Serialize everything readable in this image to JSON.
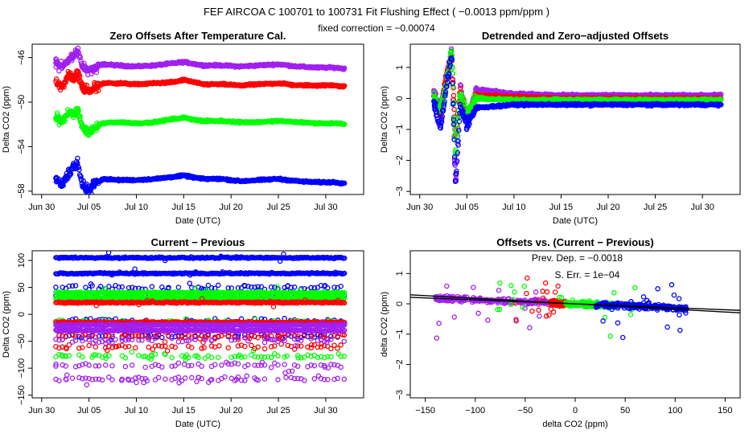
{
  "figure": {
    "title": "FEF    AIRCOA C    100701 to 100731    Fit Flushing Effect ( −0.0013 ppm/ppm )",
    "subtitle": "fixed correction = −0.00074"
  },
  "colors": {
    "purple": "#a020f0",
    "red": "#ff0000",
    "green": "#00ff00",
    "blue": "#0000ff",
    "black": "#000000"
  },
  "chart_data": [
    {
      "id": "panel1",
      "type": "scatter",
      "title": "Zero Offsets After Temperature Cal.",
      "xlabel": "Date (UTC)",
      "ylabel": "Delta CO2 (ppm)",
      "x_unit": "day of July 2010 (0 = Jun 30)",
      "xlim": [
        -1,
        34
      ],
      "ylim": [
        -58.3,
        -44.8
      ],
      "x_ticks": [
        {
          "v": 0,
          "label": "Jun 30"
        },
        {
          "v": 5,
          "label": "Jul 05"
        },
        {
          "v": 10,
          "label": "Jul 10"
        },
        {
          "v": 15,
          "label": "Jul 15"
        },
        {
          "v": 20,
          "label": "Jul 20"
        },
        {
          "v": 25,
          "label": "Jul 25"
        },
        {
          "v": 30,
          "label": "Jul 30"
        }
      ],
      "y_ticks": [
        {
          "v": -46,
          "label": "−46"
        },
        {
          "v": -50,
          "label": "−50"
        },
        {
          "v": -54,
          "label": "−54"
        },
        {
          "v": -58,
          "label": "−58"
        }
      ],
      "series": [
        {
          "name": "purple",
          "color": "purple",
          "x": [
            1.5,
            2.2,
            2.8,
            3.4,
            3.8,
            4.3,
            5,
            5.6,
            6.5,
            8,
            10,
            12,
            14,
            15,
            17,
            19,
            21,
            23,
            25,
            27,
            29,
            31,
            32
          ],
          "y": [
            -46.5,
            -46.9,
            -46.2,
            -45.9,
            -45.3,
            -46.8,
            -47.1,
            -46.9,
            -46.6,
            -46.7,
            -46.8,
            -46.7,
            -46.5,
            -46.4,
            -46.7,
            -46.7,
            -46.8,
            -46.7,
            -46.6,
            -46.8,
            -46.9,
            -46.9,
            -47.0
          ]
        },
        {
          "name": "red",
          "color": "red",
          "x": [
            1.5,
            2.2,
            2.8,
            3.4,
            3.8,
            4.3,
            5,
            5.6,
            6.5,
            8,
            10,
            12,
            14,
            15,
            17,
            19,
            21,
            23,
            25,
            27,
            29,
            31,
            32
          ],
          "y": [
            -48.2,
            -48.6,
            -47.6,
            -47.9,
            -47.3,
            -48.7,
            -49.1,
            -48.7,
            -48.3,
            -48.3,
            -48.4,
            -48.3,
            -48.2,
            -48.0,
            -48.4,
            -48.4,
            -48.5,
            -48.4,
            -48.3,
            -48.5,
            -48.5,
            -48.5,
            -48.6
          ]
        },
        {
          "name": "green",
          "color": "green",
          "x": [
            1.5,
            2.2,
            2.8,
            3.4,
            3.8,
            4.3,
            5,
            5.6,
            6.5,
            8,
            10,
            12,
            14,
            15,
            17,
            19,
            21,
            23,
            25,
            27,
            29,
            31,
            32
          ],
          "y": [
            -51.3,
            -51.8,
            -50.9,
            -51.2,
            -50.6,
            -52.3,
            -52.8,
            -52.3,
            -51.9,
            -51.8,
            -51.9,
            -51.8,
            -51.5,
            -51.4,
            -51.7,
            -51.7,
            -51.8,
            -51.8,
            -51.7,
            -51.8,
            -51.9,
            -51.9,
            -52.0
          ]
        },
        {
          "name": "blue",
          "color": "blue",
          "x": [
            1.5,
            2.2,
            2.8,
            3.4,
            3.8,
            4.3,
            5,
            5.6,
            6.5,
            8,
            10,
            12,
            14,
            15,
            17,
            19,
            21,
            23,
            25,
            27,
            29,
            31,
            32
          ],
          "y": [
            -56.8,
            -57.5,
            -56.3,
            -55.8,
            -55.5,
            -57.5,
            -58.0,
            -57.3,
            -56.9,
            -57.0,
            -57.0,
            -56.9,
            -56.7,
            -56.6,
            -56.9,
            -56.9,
            -57.1,
            -57.0,
            -56.9,
            -57.1,
            -57.2,
            -57.2,
            -57.3
          ]
        }
      ]
    },
    {
      "id": "panel2",
      "type": "scatter",
      "title": "Detrended and Zero−adjusted Offsets",
      "xlabel": "Date (UTC)",
      "ylabel": "Delta CO2 (ppm)",
      "xlim": [
        -1,
        34
      ],
      "ylim": [
        -3.1,
        1.75
      ],
      "x_ticks": [
        {
          "v": 0,
          "label": "Jun 30"
        },
        {
          "v": 5,
          "label": "Jul 05"
        },
        {
          "v": 10,
          "label": "Jul 10"
        },
        {
          "v": 15,
          "label": "Jul 15"
        },
        {
          "v": 20,
          "label": "Jul 20"
        },
        {
          "v": 25,
          "label": "Jul 25"
        },
        {
          "v": 30,
          "label": "Jul 30"
        }
      ],
      "y_ticks": [
        {
          "v": 1,
          "label": "1"
        },
        {
          "v": 0,
          "label": "0"
        },
        {
          "v": -1,
          "label": "−1"
        },
        {
          "v": -2,
          "label": "−2"
        },
        {
          "v": -3,
          "label": "−3"
        }
      ],
      "series": [
        {
          "name": "purple",
          "color": "purple",
          "x": [
            1.5,
            2.2,
            2.8,
            3.4,
            3.8,
            4.3,
            5,
            6,
            10,
            15,
            20,
            25,
            30,
            32
          ],
          "y": [
            0.2,
            -0.3,
            0.7,
            1.5,
            -2.8,
            0.5,
            -0.8,
            0.3,
            0.15,
            0.1,
            0.1,
            0.1,
            0.1,
            0.1
          ]
        },
        {
          "name": "red",
          "color": "red",
          "x": [
            1.5,
            2.2,
            2.8,
            3.4,
            3.8,
            4.3,
            5,
            6,
            10,
            15,
            20,
            25,
            30,
            32
          ],
          "y": [
            0.0,
            -0.5,
            0.7,
            1.4,
            -1.2,
            0.3,
            -0.6,
            0.1,
            0.05,
            0.0,
            0.0,
            0.0,
            0.0,
            0.0
          ]
        },
        {
          "name": "green",
          "color": "green",
          "x": [
            1.5,
            2.2,
            2.8,
            3.4,
            3.8,
            4.3,
            5,
            6,
            10,
            15,
            20,
            25,
            30,
            32
          ],
          "y": [
            0.1,
            -0.4,
            0.5,
            1.6,
            -1.8,
            0.2,
            -0.5,
            0.0,
            -0.05,
            -0.05,
            -0.05,
            -0.05,
            -0.05,
            -0.05
          ]
        },
        {
          "name": "blue",
          "color": "blue",
          "x": [
            1.5,
            2.2,
            2.8,
            3.4,
            3.8,
            4.3,
            5,
            6,
            10,
            15,
            20,
            25,
            30,
            32
          ],
          "y": [
            -0.1,
            -1.0,
            0.3,
            1.4,
            -2.9,
            -0.2,
            -0.9,
            -0.3,
            -0.2,
            -0.2,
            -0.2,
            -0.2,
            -0.2,
            -0.2
          ]
        }
      ]
    },
    {
      "id": "panel3",
      "type": "scatter",
      "title": "Current − Previous",
      "xlabel": "Date (UTC)",
      "ylabel": "Delta CO2 (ppm)",
      "xlim": [
        -1,
        34
      ],
      "ylim": [
        -155,
        118
      ],
      "x_ticks": [
        {
          "v": 0,
          "label": "Jun 30"
        },
        {
          "v": 5,
          "label": "Jul 05"
        },
        {
          "v": 10,
          "label": "Jul 10"
        },
        {
          "v": 15,
          "label": "Jul 15"
        },
        {
          "v": 20,
          "label": "Jul 20"
        },
        {
          "v": 25,
          "label": "Jul 25"
        },
        {
          "v": 30,
          "label": "Jul 30"
        }
      ],
      "y_ticks": [
        {
          "v": 100,
          "label": "100"
        },
        {
          "v": 50,
          "label": "50"
        },
        {
          "v": 0,
          "label": "0"
        },
        {
          "v": -50,
          "label": "−50"
        },
        {
          "v": -100,
          "label": "−100"
        },
        {
          "v": -150,
          "label": "−150"
        }
      ],
      "series": [
        {
          "name": "blue",
          "color": "blue",
          "levels": [
            105,
            76,
            50,
            35,
            -12,
            -40
          ]
        },
        {
          "name": "green",
          "color": "green",
          "levels": [
            40,
            30,
            -15,
            -78
          ]
        },
        {
          "name": "red",
          "color": "red",
          "levels": [
            22,
            -15,
            -40,
            -60
          ]
        },
        {
          "name": "purple",
          "color": "purple",
          "levels": [
            -20,
            -30,
            -48,
            -95,
            -120
          ]
        }
      ]
    },
    {
      "id": "panel4",
      "type": "scatter",
      "title": "Offsets vs. (Current − Previous)",
      "xlabel": "delta CO2 (ppm)",
      "ylabel": "delta CO2 (ppm)",
      "xlim": [
        -165,
        165
      ],
      "ylim": [
        -3.1,
        1.75
      ],
      "x_ticks": [
        {
          "v": -150,
          "label": "−150"
        },
        {
          "v": -100,
          "label": "−100"
        },
        {
          "v": -50,
          "label": "−50"
        },
        {
          "v": 0,
          "label": "0"
        },
        {
          "v": 50,
          "label": "50"
        },
        {
          "v": 100,
          "label": "100"
        },
        {
          "v": 150,
          "label": "150"
        }
      ],
      "y_ticks": [
        {
          "v": 1,
          "label": "1"
        },
        {
          "v": 0,
          "label": "0"
        },
        {
          "v": -1,
          "label": "−1"
        },
        {
          "v": -2,
          "label": "−2"
        },
        {
          "v": -3,
          "label": "−3"
        }
      ],
      "annotations": [
        {
          "text": "Prev. Dep. =  −0.0018",
          "x": 2,
          "y": 1.4
        },
        {
          "text": "S. Err. =  1e−04",
          "x": 12,
          "y": 0.85
        }
      ],
      "fit_lines": [
        {
          "name": "fitted",
          "slope": -0.0013,
          "intercept": 0.0
        },
        {
          "name": "previous",
          "slope": -0.0018,
          "intercept": 0.0
        }
      ],
      "series": [
        {
          "name": "purple",
          "color": "purple",
          "xrange": [
            -140,
            -20
          ],
          "cluster": [
            -140,
            -20
          ]
        },
        {
          "name": "red",
          "color": "red",
          "xrange": [
            -60,
            -10
          ],
          "cluster": [
            -25,
            -10
          ]
        },
        {
          "name": "green",
          "color": "green",
          "xrange": [
            -80,
            60
          ],
          "cluster": [
            -10,
            40
          ]
        },
        {
          "name": "blue",
          "color": "blue",
          "xrange": [
            25,
            112
          ],
          "cluster": [
            20,
            112
          ]
        }
      ]
    }
  ]
}
